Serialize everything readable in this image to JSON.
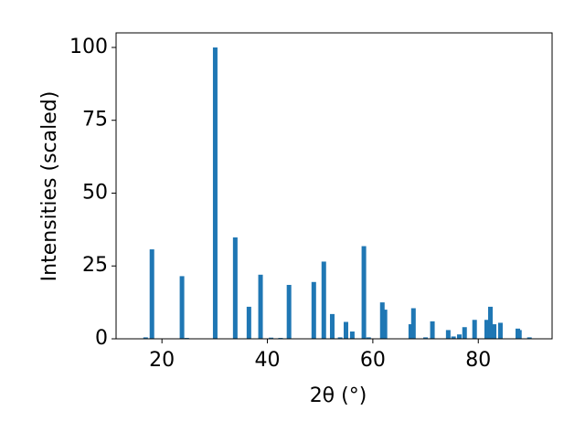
{
  "chart_data": {
    "type": "bar",
    "x_label": "2θ (°)",
    "y_label": "Intensities (scaled)",
    "x": [
      16.9,
      18.1,
      23.8,
      24.7,
      30.1,
      33.9,
      36.5,
      38.7,
      40.7,
      42.5,
      44.1,
      48.8,
      50.7,
      52.3,
      53.8,
      54.9,
      56.1,
      58.3,
      59.2,
      61.8,
      62.3,
      67.2,
      67.7,
      70.0,
      71.3,
      74.3,
      75.3,
      76.4,
      77.4,
      79.3,
      81.6,
      82.3,
      83.0,
      84.2,
      87.5,
      87.8,
      89.7
    ],
    "values": [
      0.5,
      30.7,
      21.5,
      0.3,
      100,
      34.8,
      11,
      22,
      0.4,
      0.3,
      18.5,
      19.5,
      26.5,
      8.5,
      0.5,
      5.8,
      2.5,
      31.8,
      0.5,
      12.5,
      10,
      5,
      10.5,
      0.5,
      6,
      3,
      0.8,
      1.5,
      4,
      6.5,
      6.5,
      11,
      5,
      5.5,
      3.5,
      3,
      0.5
    ],
    "color": "#1f77b4",
    "xlim": [
      11.3,
      94.0
    ],
    "xticks": [
      20,
      40,
      60,
      80
    ],
    "ylim": [
      0,
      105
    ],
    "yticks": [
      0,
      25,
      50,
      75,
      100
    ]
  }
}
